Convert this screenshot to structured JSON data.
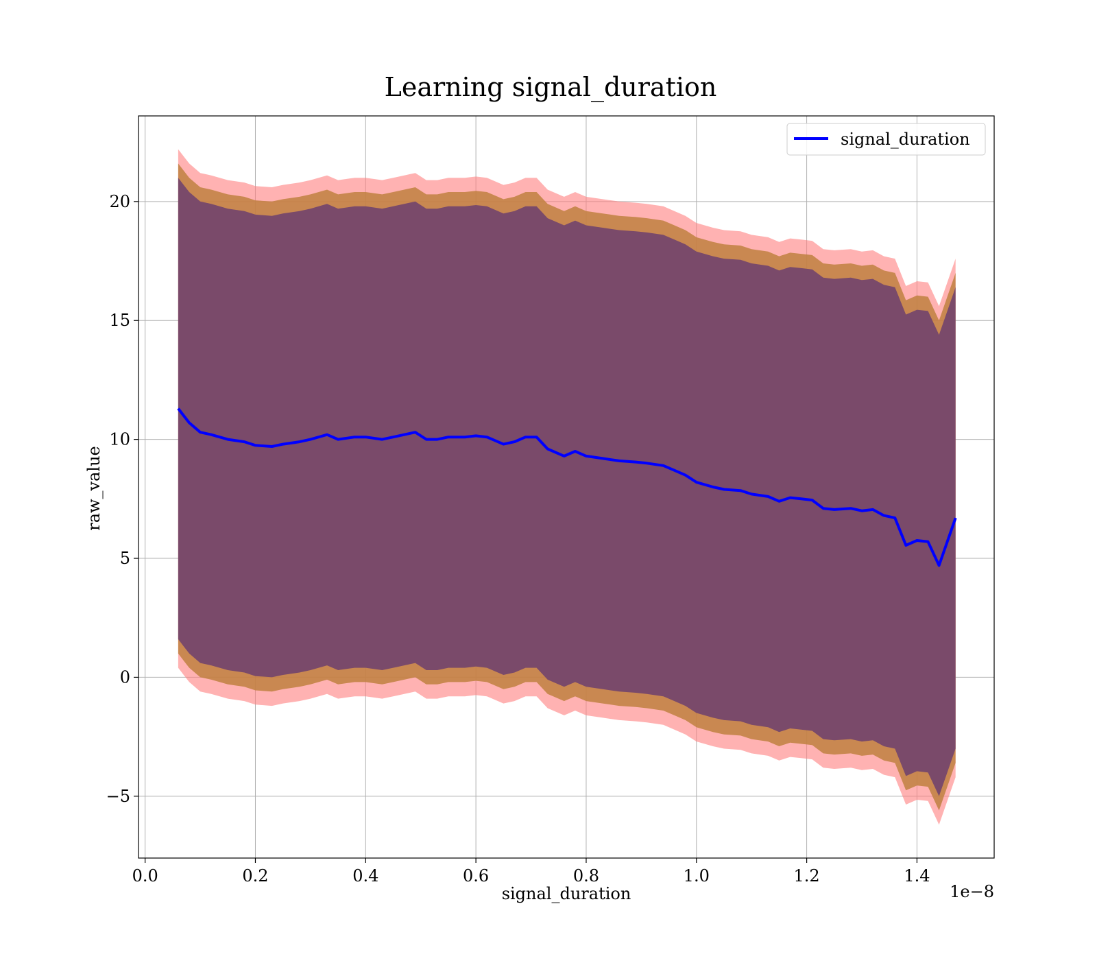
{
  "chart_data": {
    "type": "line",
    "title": "Learning signal_duration",
    "xlabel": "signal_duration",
    "ylabel": "raw_value",
    "x_offset_text": "1e−8",
    "xlim": [
      -0.012,
      1.54
    ],
    "ylim": [
      -7.6,
      23.6
    ],
    "x_ticks": [
      0.0,
      0.2,
      0.4,
      0.6,
      0.8,
      1.0,
      1.2,
      1.4
    ],
    "x_tick_labels": [
      "0.0",
      "0.2",
      "0.4",
      "0.6",
      "0.8",
      "1.0",
      "1.2",
      "1.4"
    ],
    "y_ticks": [
      -5,
      0,
      5,
      10,
      15,
      20
    ],
    "y_tick_labels": [
      "−5",
      "0",
      "5",
      "10",
      "15",
      "20"
    ],
    "grid": true,
    "legend": {
      "position": "top-right",
      "entries": [
        "signal_duration"
      ]
    },
    "colors": {
      "line": "#0000ff",
      "band_outer": "#ff7f7f",
      "band_middle": "#c08040",
      "band_inner": "#7a4a6a"
    },
    "x": [
      0.06,
      0.07,
      0.08,
      0.1,
      0.12,
      0.15,
      0.18,
      0.2,
      0.23,
      0.25,
      0.28,
      0.3,
      0.33,
      0.35,
      0.38,
      0.4,
      0.43,
      0.45,
      0.47,
      0.49,
      0.51,
      0.53,
      0.55,
      0.58,
      0.6,
      0.62,
      0.65,
      0.67,
      0.69,
      0.71,
      0.73,
      0.76,
      0.78,
      0.8,
      0.83,
      0.86,
      0.89,
      0.91,
      0.94,
      0.96,
      0.98,
      1.0,
      1.03,
      1.05,
      1.08,
      1.1,
      1.13,
      1.15,
      1.17,
      1.19,
      1.21,
      1.23,
      1.25,
      1.28,
      1.3,
      1.32,
      1.34,
      1.36,
      1.38,
      1.4,
      1.42,
      1.44,
      1.47
    ],
    "series": [
      {
        "name": "signal_duration",
        "values": [
          11.3,
          11.0,
          10.7,
          10.3,
          10.2,
          10.0,
          9.9,
          9.75,
          9.7,
          9.8,
          9.9,
          10.0,
          10.2,
          10.0,
          10.1,
          10.1,
          10.0,
          10.1,
          10.2,
          10.3,
          10.0,
          10.0,
          10.1,
          10.1,
          10.15,
          10.1,
          9.8,
          9.9,
          10.1,
          10.1,
          9.6,
          9.3,
          9.5,
          9.3,
          9.2,
          9.1,
          9.05,
          9.0,
          8.9,
          8.7,
          8.5,
          8.2,
          8.0,
          7.9,
          7.85,
          7.7,
          7.6,
          7.4,
          7.55,
          7.5,
          7.45,
          7.1,
          7.05,
          7.1,
          7.0,
          7.05,
          6.8,
          6.7,
          5.55,
          5.75,
          5.7,
          4.7,
          6.7
        ]
      }
    ],
    "bands": [
      {
        "label": "outer",
        "half_width": 10.9
      },
      {
        "label": "middle",
        "half_width": 10.3
      },
      {
        "label": "inner",
        "half_width": 9.7
      }
    ]
  }
}
